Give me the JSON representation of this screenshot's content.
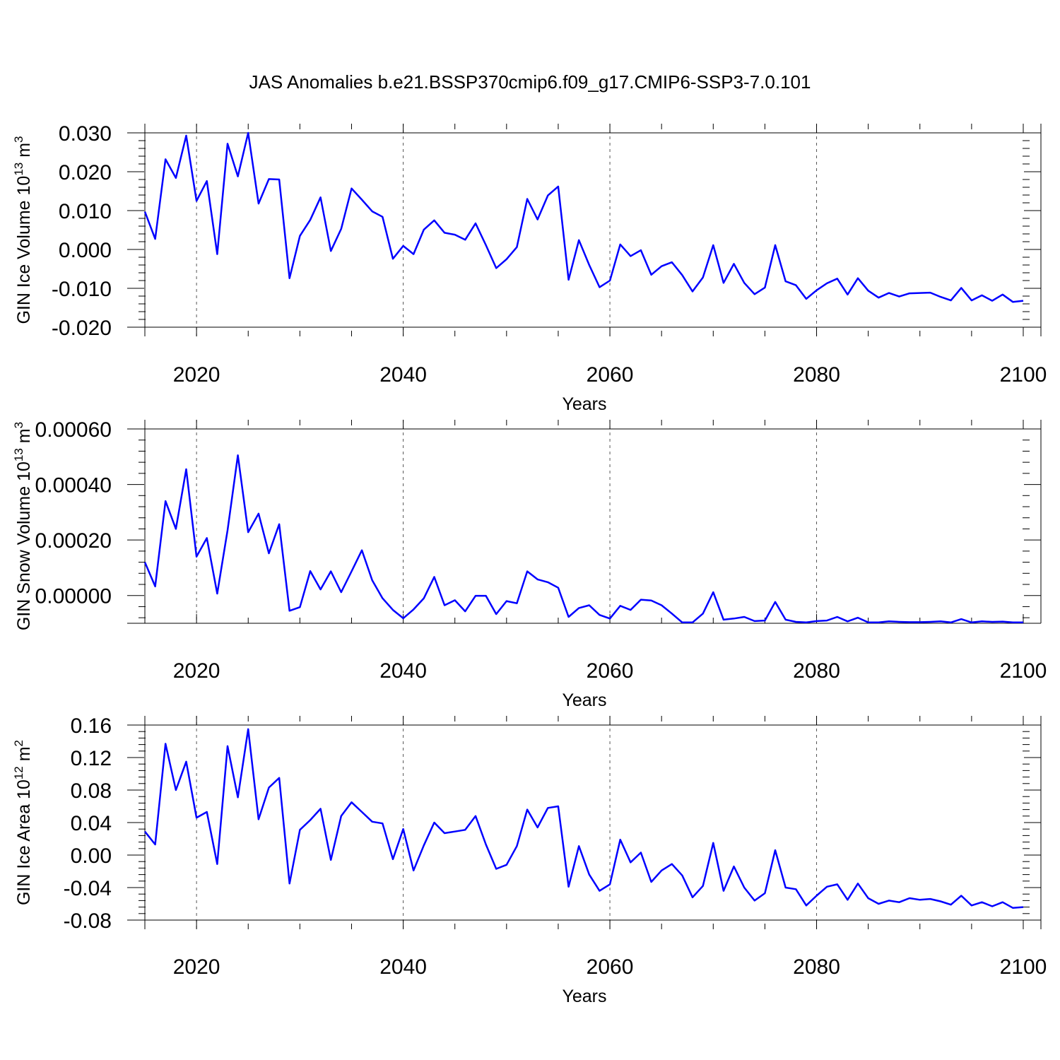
{
  "title": "JAS Anomalies b.e21.BSSP370cmip6.f09_g17.CMIP6-SSP3-7.0.101",
  "colors": {
    "line": "#0000ff",
    "axis": "#000000",
    "grid": "#555555"
  },
  "chart_data": [
    {
      "type": "line",
      "ylabel": "GIN Ice Volume 10",
      "ylabel_exp": "13",
      "ylabel_unit": "m",
      "ylabel_unit_exp": "3",
      "xlabel": "Years",
      "xlim": [
        2015,
        2100
      ],
      "ylim": [
        -0.02,
        0.03
      ],
      "x_ticks": [
        "2020",
        "2040",
        "2060",
        "2080",
        "2100"
      ],
      "y_ticks": [
        "0.030",
        "0.020",
        "0.010",
        "0.000",
        "-0.010",
        "-0.020"
      ],
      "grid_x": [
        2020,
        2040,
        2060,
        2080
      ],
      "series": [
        {
          "x_start": 2015,
          "values": [
            0.0097,
            0.0027,
            0.0232,
            0.0184,
            0.0293,
            0.0125,
            0.0176,
            -0.0012,
            0.0272,
            0.0188,
            0.03,
            0.0118,
            0.0181,
            0.018,
            -0.0074,
            0.0035,
            0.0076,
            0.0134,
            -0.0004,
            0.0053,
            0.0157,
            0.0128,
            0.0098,
            0.0084,
            -0.0024,
            0.0009,
            -0.0012,
            0.0051,
            0.0075,
            0.0043,
            0.0038,
            0.0025,
            0.0067,
            0.0011,
            -0.0048,
            -0.0025,
            0.0006,
            0.013,
            0.0077,
            0.0139,
            0.0162,
            -0.0078,
            0.0024,
            -0.004,
            -0.0097,
            -0.008,
            0.0013,
            -0.0017,
            -0.0002,
            -0.0065,
            -0.0043,
            -0.0033,
            -0.0066,
            -0.0108,
            -0.0072,
            0.0011,
            -0.0086,
            -0.0037,
            -0.0086,
            -0.0115,
            -0.0098,
            0.0011,
            -0.0082,
            -0.0092,
            -0.0127,
            -0.0105,
            -0.0087,
            -0.0075,
            -0.0116,
            -0.0074,
            -0.0106,
            -0.0124,
            -0.0112,
            -0.0121,
            -0.0113,
            -0.0112,
            -0.0111,
            -0.0122,
            -0.0131,
            -0.0099,
            -0.0131,
            -0.0118,
            -0.0132,
            -0.0116,
            -0.0135,
            -0.0132
          ]
        }
      ]
    },
    {
      "type": "line",
      "ylabel": "GIN Snow Volume 10",
      "ylabel_exp": "13",
      "ylabel_unit": "m",
      "ylabel_unit_exp": "3",
      "xlabel": "Years",
      "xlim": [
        2015,
        2100
      ],
      "ylim": [
        -0.0001,
        0.0006
      ],
      "x_ticks": [
        "2020",
        "2040",
        "2060",
        "2080",
        "2100"
      ],
      "y_ticks": [
        "0.00060",
        "0.00040",
        "0.00020",
        "0.00000"
      ],
      "grid_x": [
        2020,
        2040,
        2060,
        2080
      ],
      "series": [
        {
          "x_start": 2015,
          "values": [
            0.00012,
            3.3e-05,
            0.00034,
            0.00024,
            0.000455,
            0.00014,
            0.000207,
            7e-06,
            0.000235,
            0.000505,
            0.000228,
            0.000295,
            0.000152,
            0.000257,
            -5.5e-05,
            -4.2e-05,
            8.8e-05,
            2.2e-05,
            8.7e-05,
            1.2e-05,
            8.7e-05,
            0.000163,
            5.5e-05,
            -1e-05,
            -5.2e-05,
            -8.2e-05,
            -5e-05,
            -1e-05,
            6.7e-05,
            -3.5e-05,
            -1.7e-05,
            -5.7e-05,
            -1e-06,
            -1e-06,
            -6.7e-05,
            -2e-05,
            -2.8e-05,
            8.7e-05,
            5.8e-05,
            4.8e-05,
            2.8e-05,
            -7.7e-05,
            -4.5e-05,
            -3.5e-05,
            -7e-05,
            -8.3e-05,
            -3.7e-05,
            -5.2e-05,
            -1.5e-05,
            -1.8e-05,
            -3.5e-05,
            -6.5e-05,
            -9.7e-05,
            -9.7e-05,
            -6.5e-05,
            1.2e-05,
            -8.7e-05,
            -8.3e-05,
            -7.7e-05,
            -9.2e-05,
            -9e-05,
            -2.3e-05,
            -8.7e-05,
            -9.5e-05,
            -9.7e-05,
            -9.2e-05,
            -9e-05,
            -7.7e-05,
            -9.3e-05,
            -8e-05,
            -9.7e-05,
            -9.7e-05,
            -9.3e-05,
            -9.5e-05,
            -9.6e-05,
            -9.6e-05,
            -9.5e-05,
            -9.3e-05,
            -9.7e-05,
            -8.5e-05,
            -9.7e-05,
            -9.3e-05,
            -9.5e-05,
            -9.4e-05,
            -9.7e-05,
            -9.7e-05
          ]
        }
      ]
    },
    {
      "type": "line",
      "ylabel": "GIN Ice Area 10",
      "ylabel_exp": "12",
      "ylabel_unit": "m",
      "ylabel_unit_exp": "2",
      "xlabel": "Years",
      "xlim": [
        2015,
        2100
      ],
      "ylim": [
        -0.08,
        0.16
      ],
      "x_ticks": [
        "2020",
        "2040",
        "2060",
        "2080",
        "2100"
      ],
      "y_ticks": [
        "0.16",
        "0.12",
        "0.08",
        "0.04",
        "0.00",
        "-0.04",
        "-0.08"
      ],
      "grid_x": [
        2020,
        2040,
        2060,
        2080
      ],
      "series": [
        {
          "x_start": 2015,
          "values": [
            0.029,
            0.013,
            0.137,
            0.08,
            0.115,
            0.046,
            0.053,
            -0.011,
            0.134,
            0.071,
            0.155,
            0.044,
            0.083,
            0.095,
            -0.035,
            0.031,
            0.043,
            0.057,
            -0.006,
            0.048,
            0.065,
            0.053,
            0.041,
            0.039,
            -0.005,
            0.032,
            -0.019,
            0.012,
            0.04,
            0.027,
            0.029,
            0.031,
            0.048,
            0.013,
            -0.017,
            -0.012,
            0.011,
            0.056,
            0.034,
            0.058,
            0.06,
            -0.039,
            0.011,
            -0.024,
            -0.044,
            -0.036,
            0.019,
            -0.009,
            0.003,
            -0.033,
            -0.019,
            -0.011,
            -0.025,
            -0.052,
            -0.038,
            0.015,
            -0.044,
            -0.014,
            -0.04,
            -0.056,
            -0.047,
            0.006,
            -0.04,
            -0.042,
            -0.062,
            -0.05,
            -0.039,
            -0.036,
            -0.055,
            -0.035,
            -0.053,
            -0.06,
            -0.056,
            -0.058,
            -0.053,
            -0.055,
            -0.054,
            -0.057,
            -0.061,
            -0.05,
            -0.062,
            -0.058,
            -0.063,
            -0.058,
            -0.065,
            -0.064
          ]
        }
      ]
    }
  ]
}
